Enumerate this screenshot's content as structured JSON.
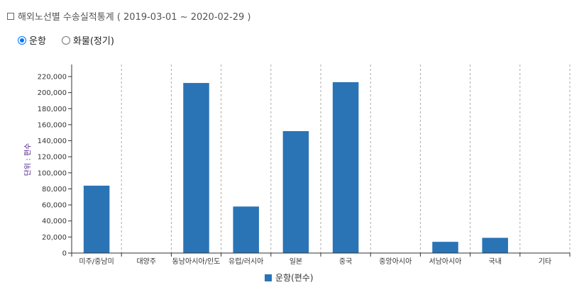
{
  "header": {
    "title": "해외노선별 수송실적통계 ( 2019-03-01 ~ 2020-02-29 )"
  },
  "options": [
    {
      "label": "운항",
      "checked": true
    },
    {
      "label": "화물(정기)",
      "checked": false
    }
  ],
  "colors": {
    "bar": "#2a74b5",
    "grid": "#aaaaaa",
    "axis": "#333333",
    "ylabel": "#4a1a8a"
  },
  "chart_data": {
    "type": "bar",
    "categories": [
      "미주/중남미",
      "대양주",
      "동남아시아/인도",
      "유럽/러시아",
      "일본",
      "중국",
      "중앙아시아",
      "서남아시아",
      "국내",
      "기타"
    ],
    "series": [
      {
        "name": "운항(편수)",
        "values": [
          84000,
          0,
          212000,
          58000,
          152000,
          213000,
          0,
          14000,
          19000,
          0
        ]
      }
    ],
    "yticks": [
      "0",
      "20,000",
      "40,000",
      "60,000",
      "80,000",
      "100,000",
      "120,000",
      "140,000",
      "160,000",
      "180,000",
      "200,000",
      "220,000"
    ],
    "ylabel": "단위 : 편수",
    "ylim": [
      0,
      220000
    ],
    "grid": "vertical-dashed",
    "legend_position": "bottom-center"
  }
}
